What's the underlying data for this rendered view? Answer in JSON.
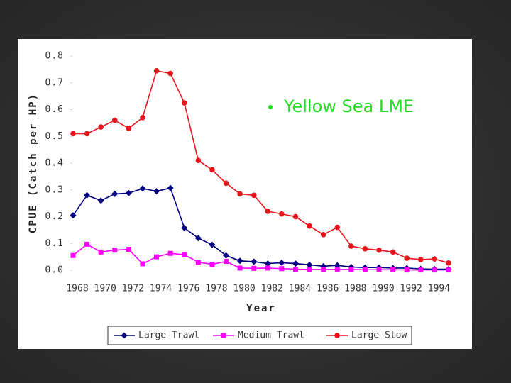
{
  "chart_data": {
    "type": "line",
    "annotation": "Yellow Sea LME",
    "ylabel": "CPUE (Catch per HP)",
    "xlabel": "Year",
    "categories": [
      "1968",
      null,
      "1970",
      null,
      "1972",
      null,
      "1974",
      null,
      "1976",
      null,
      "1978",
      null,
      "1980",
      null,
      "1982",
      null,
      "1984",
      null,
      "1986",
      null,
      "1988",
      null,
      "1990",
      null,
      "1992",
      null,
      "1994",
      null
    ],
    "ylim": [
      0,
      0.8
    ],
    "yticks": [
      {
        "value": 0,
        "label": "0.0"
      },
      0.1,
      0.2,
      0.3,
      0.4,
      0.5,
      0.6,
      0.7,
      0.8
    ],
    "legend": "bottom",
    "series": [
      {
        "name": "Large Trawl",
        "color": "#000080",
        "marker": "diamond",
        "values": [
          0.205,
          0.28,
          0.26,
          0.285,
          0.288,
          0.305,
          0.295,
          0.307,
          0.158,
          0.12,
          0.095,
          0.055,
          0.035,
          0.032,
          0.025,
          0.028,
          0.025,
          0.02,
          0.015,
          0.018,
          0.012,
          0.01,
          0.01,
          0.008,
          0.008,
          0.005,
          0.004,
          0.004
        ]
      },
      {
        "name": "Medium Trawl",
        "color": "#ff00ff",
        "marker": "square",
        "values": [
          0.055,
          0.097,
          0.068,
          0.075,
          0.078,
          0.024,
          0.05,
          0.063,
          0.058,
          0.03,
          0.022,
          0.033,
          0.008,
          0.007,
          0.008,
          0.006,
          0.004,
          0.003,
          0.003,
          0.003,
          0.003,
          0.002,
          0.002,
          0.002,
          0.001,
          0.001,
          0.001,
          0.001
        ]
      },
      {
        "name": "Large Stow",
        "color": "#e8141c",
        "marker": "circle",
        "values": [
          0.51,
          0.51,
          0.535,
          0.56,
          0.53,
          0.57,
          0.745,
          0.735,
          0.625,
          0.41,
          0.375,
          0.325,
          0.285,
          0.28,
          0.22,
          0.21,
          0.2,
          0.165,
          0.133,
          0.16,
          0.09,
          0.08,
          0.075,
          0.068,
          0.045,
          0.04,
          0.042,
          0.027
        ]
      }
    ]
  }
}
